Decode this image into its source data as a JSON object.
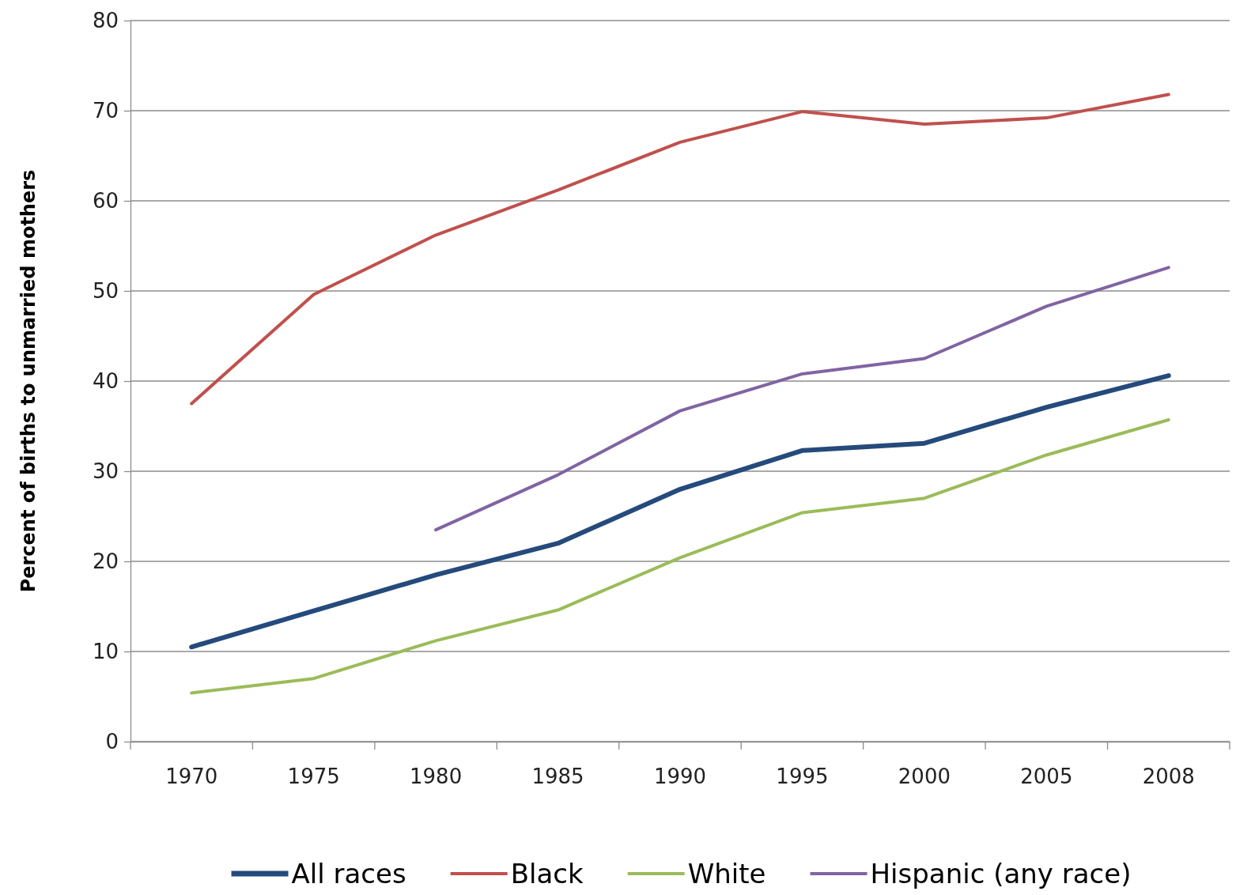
{
  "chart_data": {
    "type": "line",
    "ylabel": "Percent of births to unmarried mothers",
    "categories": [
      "1970",
      "1975",
      "1980",
      "1985",
      "1990",
      "1995",
      "2000",
      "2005",
      "2008"
    ],
    "series": [
      {
        "name": "All races",
        "color": "#254a7c",
        "values": [
          10.5,
          14.5,
          18.5,
          22,
          28,
          32.3,
          33.1,
          37.1,
          40.6
        ]
      },
      {
        "name": "Black",
        "color": "#c0504d",
        "values": [
          37.5,
          49.6,
          56.2,
          61.2,
          66.5,
          69.9,
          68.5,
          69.2,
          71.8
        ]
      },
      {
        "name": "White",
        "color": "#9bbb59",
        "values": [
          5.4,
          7.0,
          11.2,
          14.6,
          20.4,
          25.4,
          27.0,
          31.8,
          35.7
        ]
      },
      {
        "name": "Hispanic (any race)",
        "color": "#8064a2",
        "values": [
          null,
          null,
          23.5,
          29.6,
          36.7,
          40.8,
          42.5,
          48.3,
          52.6
        ]
      }
    ],
    "ylim": [
      0,
      80
    ],
    "yticks": [
      0,
      10,
      20,
      30,
      40,
      50,
      60,
      70,
      80
    ],
    "grid": "y",
    "legend": "bottom",
    "marker": "none",
    "line_style": "solid"
  }
}
